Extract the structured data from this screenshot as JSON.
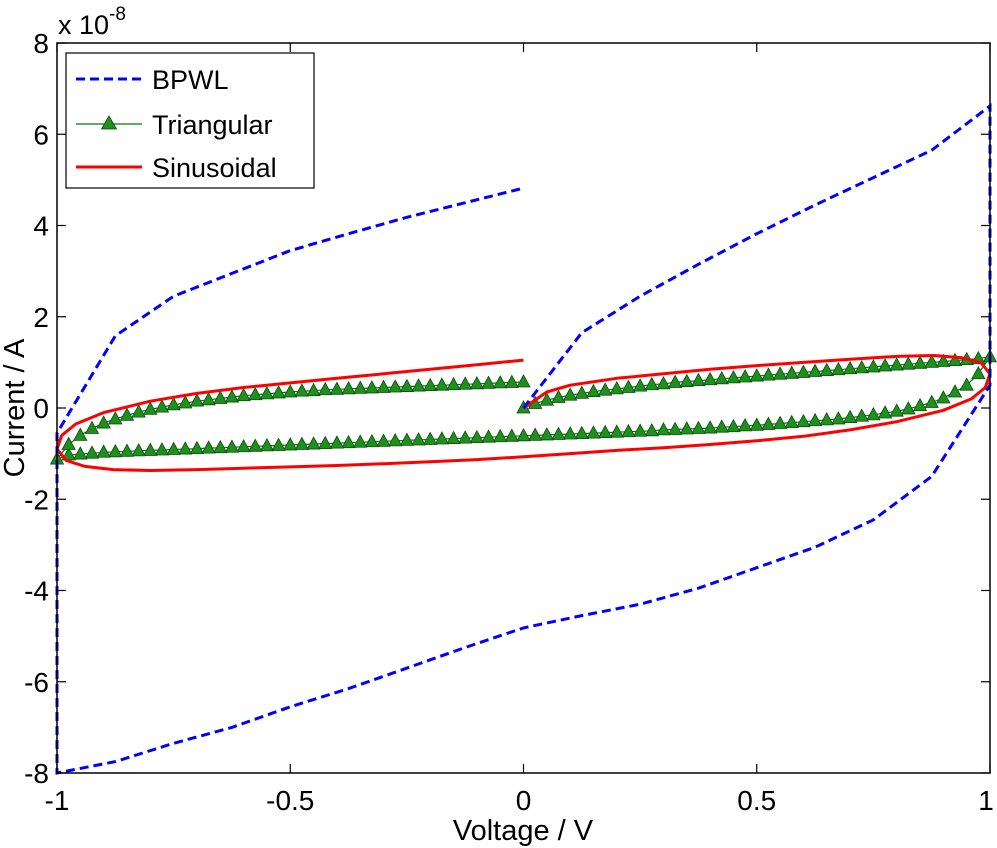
{
  "chart_data": {
    "type": "line",
    "title": "",
    "xlabel": "Voltage / V",
    "ylabel": "Current / A",
    "xlim": [
      -1,
      1
    ],
    "ylim": [
      -8,
      8
    ],
    "y_scale_exponent": "x 10",
    "y_scale_power": "-8",
    "xticks": [
      -1,
      -0.5,
      0,
      0.5,
      1
    ],
    "yticks": [
      -8,
      -6,
      -4,
      -2,
      0,
      2,
      4,
      6,
      8
    ],
    "xtick_labels": [
      "-1",
      "-0.5",
      "0",
      "0.5",
      "1"
    ],
    "ytick_labels": [
      "-8",
      "-6",
      "-4",
      "-2",
      "0",
      "2",
      "4",
      "6",
      "8"
    ],
    "legend_position": "top-left",
    "series": [
      {
        "name": "BPWL",
        "color": "#0000ff",
        "style": "dashed",
        "x": [
          0,
          0.125,
          0.25,
          0.375,
          0.5,
          0.625,
          0.75,
          0.875,
          1.0,
          1.0,
          0.875,
          0.75,
          0.625,
          0.5,
          0.375,
          0.25,
          0.125,
          0,
          -0.125,
          -0.25,
          -0.375,
          -0.5,
          -0.625,
          -0.75,
          -0.875,
          -1.0,
          -1.0,
          -0.875,
          -0.75,
          -0.625,
          -0.5,
          -0.375,
          -0.25,
          -0.125,
          0
        ],
        "y": [
          0,
          1.65,
          2.45,
          3.15,
          3.82,
          4.45,
          5.05,
          5.65,
          6.62,
          0.5,
          -1.5,
          -2.45,
          -3.05,
          -3.5,
          -3.95,
          -4.3,
          -4.55,
          -4.82,
          -5.25,
          -5.7,
          -6.15,
          -6.55,
          -7.0,
          -7.35,
          -7.75,
          -8.0,
          -0.55,
          1.58,
          2.45,
          2.95,
          3.45,
          3.82,
          4.18,
          4.5,
          4.82
        ]
      },
      {
        "name": "Triangular",
        "color": "#007f00",
        "marker_color": "#1f8f1f",
        "style": "solid",
        "marker": "triangle",
        "x": [
          0,
          0.025,
          0.05,
          0.075,
          0.1,
          0.125,
          0.15,
          0.175,
          0.2,
          0.225,
          0.25,
          0.275,
          0.3,
          0.325,
          0.35,
          0.375,
          0.4,
          0.425,
          0.45,
          0.475,
          0.5,
          0.525,
          0.55,
          0.575,
          0.6,
          0.625,
          0.65,
          0.675,
          0.7,
          0.725,
          0.75,
          0.775,
          0.8,
          0.825,
          0.85,
          0.875,
          0.9,
          0.925,
          0.95,
          0.975,
          1.0,
          0.975,
          0.95,
          0.925,
          0.9,
          0.875,
          0.85,
          0.825,
          0.8,
          0.775,
          0.75,
          0.725,
          0.7,
          0.675,
          0.65,
          0.625,
          0.6,
          0.575,
          0.55,
          0.525,
          0.5,
          0.475,
          0.45,
          0.425,
          0.4,
          0.375,
          0.35,
          0.325,
          0.3,
          0.275,
          0.25,
          0.225,
          0.2,
          0.175,
          0.15,
          0.125,
          0.1,
          0.075,
          0.05,
          0.025,
          0,
          -0.025,
          -0.05,
          -0.075,
          -0.1,
          -0.125,
          -0.15,
          -0.175,
          -0.2,
          -0.225,
          -0.25,
          -0.275,
          -0.3,
          -0.325,
          -0.35,
          -0.375,
          -0.4,
          -0.425,
          -0.45,
          -0.475,
          -0.5,
          -0.525,
          -0.55,
          -0.575,
          -0.6,
          -0.625,
          -0.65,
          -0.675,
          -0.7,
          -0.725,
          -0.75,
          -0.775,
          -0.8,
          -0.825,
          -0.85,
          -0.875,
          -0.9,
          -0.925,
          -0.95,
          -0.975,
          -1.0,
          -0.975,
          -0.95,
          -0.925,
          -0.9,
          -0.875,
          -0.85,
          -0.825,
          -0.8,
          -0.775,
          -0.75,
          -0.725,
          -0.7,
          -0.675,
          -0.65,
          -0.625,
          -0.6,
          -0.575,
          -0.55,
          -0.525,
          -0.5,
          -0.475,
          -0.45,
          -0.425,
          -0.4,
          -0.375,
          -0.35,
          -0.325,
          -0.3,
          -0.275,
          -0.25,
          -0.225,
          -0.2,
          -0.175,
          -0.15,
          -0.125,
          -0.1,
          -0.075,
          -0.05,
          -0.025,
          0
        ],
        "y": [
          0.0,
          0.1,
          0.17,
          0.23,
          0.28,
          0.32,
          0.36,
          0.39,
          0.42,
          0.45,
          0.48,
          0.51,
          0.53,
          0.56,
          0.58,
          0.6,
          0.62,
          0.64,
          0.66,
          0.68,
          0.7,
          0.72,
          0.74,
          0.76,
          0.78,
          0.8,
          0.82,
          0.84,
          0.86,
          0.88,
          0.9,
          0.92,
          0.94,
          0.96,
          0.98,
          1.0,
          1.02,
          1.04,
          1.06,
          1.08,
          1.12,
          0.75,
          0.5,
          0.35,
          0.22,
          0.12,
          0.05,
          -0.02,
          -0.07,
          -0.11,
          -0.15,
          -0.18,
          -0.21,
          -0.24,
          -0.26,
          -0.28,
          -0.3,
          -0.32,
          -0.34,
          -0.36,
          -0.38,
          -0.39,
          -0.41,
          -0.42,
          -0.44,
          -0.45,
          -0.46,
          -0.47,
          -0.48,
          -0.5,
          -0.51,
          -0.52,
          -0.53,
          -0.54,
          -0.55,
          -0.56,
          -0.57,
          -0.58,
          -0.59,
          -0.6,
          -0.61,
          -0.62,
          -0.63,
          -0.64,
          -0.65,
          -0.66,
          -0.67,
          -0.68,
          -0.69,
          -0.7,
          -0.71,
          -0.72,
          -0.73,
          -0.74,
          -0.75,
          -0.76,
          -0.77,
          -0.78,
          -0.79,
          -0.8,
          -0.81,
          -0.82,
          -0.83,
          -0.84,
          -0.85,
          -0.86,
          -0.87,
          -0.88,
          -0.89,
          -0.9,
          -0.91,
          -0.92,
          -0.93,
          -0.94,
          -0.95,
          -0.96,
          -0.97,
          -0.99,
          -1.01,
          -1.03,
          -1.12,
          -0.8,
          -0.6,
          -0.45,
          -0.33,
          -0.24,
          -0.16,
          -0.09,
          -0.03,
          0.02,
          0.07,
          0.11,
          0.15,
          0.18,
          0.21,
          0.24,
          0.27,
          0.29,
          0.31,
          0.33,
          0.35,
          0.37,
          0.38,
          0.4,
          0.41,
          0.42,
          0.43,
          0.44,
          0.45,
          0.46,
          0.47,
          0.48,
          0.49,
          0.5,
          0.51,
          0.52,
          0.53,
          0.54,
          0.55,
          0.56,
          0.57
        ]
      },
      {
        "name": "Sinusoidal",
        "color": "#ff0000",
        "style": "solid",
        "x": [
          0,
          0.05,
          0.1,
          0.2,
          0.3,
          0.4,
          0.5,
          0.6,
          0.7,
          0.8,
          0.88,
          0.94,
          0.98,
          1.0,
          0.99,
          0.96,
          0.9,
          0.8,
          0.7,
          0.6,
          0.5,
          0.4,
          0.3,
          0.2,
          0.1,
          0,
          -0.1,
          -0.2,
          -0.3,
          -0.4,
          -0.5,
          -0.6,
          -0.7,
          -0.8,
          -0.88,
          -0.94,
          -0.98,
          -1.0,
          -0.99,
          -0.96,
          -0.9,
          -0.8,
          -0.7,
          -0.6,
          -0.5,
          -0.4,
          -0.3,
          -0.2,
          -0.1,
          0
        ],
        "y": [
          0,
          0.35,
          0.5,
          0.65,
          0.75,
          0.85,
          0.93,
          1.0,
          1.07,
          1.13,
          1.15,
          1.1,
          1.0,
          0.75,
          0.45,
          0.2,
          -0.05,
          -0.3,
          -0.48,
          -0.62,
          -0.72,
          -0.8,
          -0.87,
          -0.93,
          -1.0,
          -1.07,
          -1.13,
          -1.18,
          -1.22,
          -1.26,
          -1.29,
          -1.32,
          -1.35,
          -1.37,
          -1.35,
          -1.28,
          -1.15,
          -0.9,
          -0.6,
          -0.35,
          -0.1,
          0.15,
          0.32,
          0.45,
          0.55,
          0.65,
          0.75,
          0.85,
          0.95,
          1.05
        ]
      }
    ]
  }
}
